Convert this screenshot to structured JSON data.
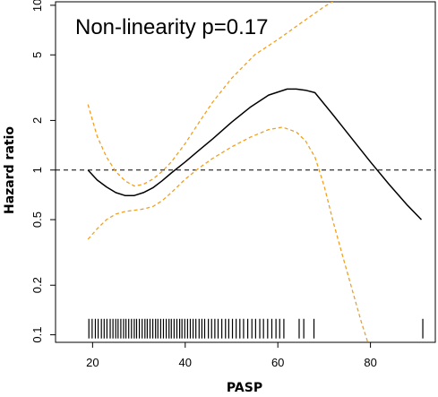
{
  "chart_data": {
    "type": "line",
    "title": "",
    "annotation": "Non-linearity p=0.17",
    "xlabel": "PASP",
    "ylabel": "Hazard ratio",
    "xlim": [
      12,
      94
    ],
    "ylim": [
      0.09,
      10.5
    ],
    "yscale": "log",
    "x_ticks": [
      20,
      40,
      60,
      80
    ],
    "y_ticks": [
      0.1,
      0.2,
      0.5,
      1,
      2,
      5,
      10
    ],
    "y_tick_labels": [
      "0.1",
      "0.2",
      "0.5",
      "1",
      "2",
      "5",
      "10"
    ],
    "reference_line": {
      "y": 1,
      "style": "dashed",
      "color": "#000000"
    },
    "grid": false,
    "colors": {
      "estimate": "#000000",
      "ci": "#f0a020",
      "rug": "#000000",
      "reference": "#000000"
    },
    "series": [
      {
        "style": "solid",
        "x": [
          19,
          21,
          23,
          25,
          27,
          29,
          31,
          33,
          35,
          37,
          40,
          43,
          46,
          50,
          54,
          58,
          62,
          64,
          66,
          68,
          72,
          76,
          80,
          84,
          88,
          91
        ],
        "y": [
          1.0,
          0.87,
          0.79,
          0.73,
          0.7,
          0.7,
          0.73,
          0.78,
          0.86,
          0.96,
          1.12,
          1.32,
          1.55,
          1.95,
          2.4,
          2.85,
          3.1,
          3.1,
          3.05,
          2.95,
          2.15,
          1.55,
          1.12,
          0.82,
          0.61,
          0.5
        ]
      },
      {
        "style": "dashed",
        "x": [
          19,
          21,
          23,
          25,
          27,
          29,
          31,
          33,
          35,
          37,
          40,
          43,
          46,
          50,
          55,
          60,
          65,
          70,
          75
        ],
        "y": [
          2.5,
          1.6,
          1.2,
          0.98,
          0.86,
          0.8,
          0.82,
          0.88,
          0.98,
          1.12,
          1.45,
          1.95,
          2.6,
          3.6,
          5.0,
          6.2,
          7.8,
          9.8,
          12.0
        ]
      },
      {
        "style": "dashed",
        "x": [
          19,
          21,
          23,
          25,
          27,
          29,
          31,
          33,
          35,
          37,
          40,
          43,
          46,
          50,
          54,
          58,
          61,
          64,
          66,
          68,
          70,
          72,
          74,
          76,
          78,
          80
        ],
        "y": [
          0.38,
          0.44,
          0.5,
          0.54,
          0.56,
          0.57,
          0.58,
          0.6,
          0.65,
          0.73,
          0.88,
          1.03,
          1.18,
          1.38,
          1.58,
          1.76,
          1.82,
          1.7,
          1.5,
          1.2,
          0.8,
          0.48,
          0.3,
          0.19,
          0.12,
          0.08
        ]
      }
    ],
    "rug": [
      19.2,
      19.9,
      20.6,
      21.2,
      21.9,
      22.5,
      23.1,
      23.8,
      24.4,
      25.0,
      25.5,
      26.1,
      26.7,
      27.2,
      27.8,
      28.4,
      29.0,
      29.5,
      30.1,
      30.7,
      31.3,
      31.8,
      32.4,
      33.0,
      33.6,
      34.1,
      34.7,
      35.3,
      35.9,
      36.5,
      37.0,
      37.6,
      38.2,
      38.8,
      39.3,
      39.9,
      40.5,
      41.1,
      41.7,
      42.3,
      43.0,
      43.6,
      44.2,
      45.0,
      45.7,
      46.4,
      47.1,
      47.9,
      48.7,
      49.4,
      50.2,
      51.0,
      51.8,
      52.6,
      53.5,
      54.4,
      55.2,
      56.1,
      56.9,
      57.8,
      58.7,
      59.6,
      60.4,
      61.3,
      64.6,
      65.6,
      67.8,
      91.3
    ]
  }
}
